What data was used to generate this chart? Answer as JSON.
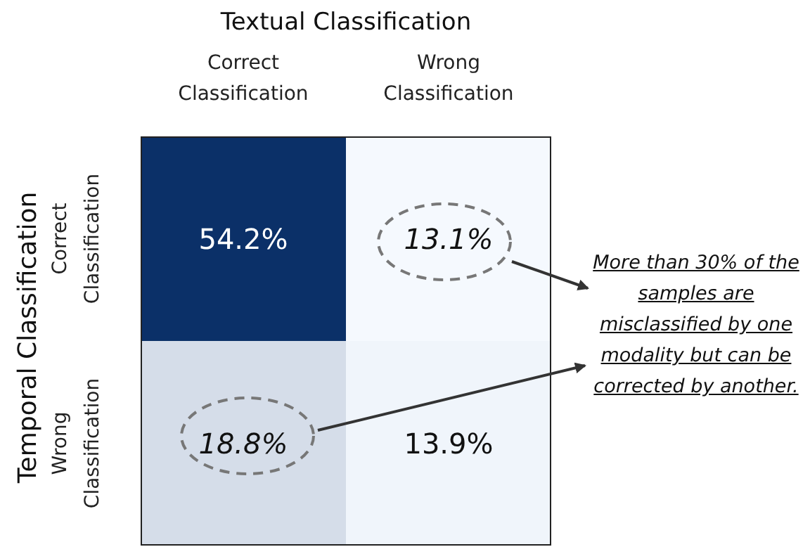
{
  "chart_data": {
    "type": "heatmap",
    "title": "Textual Classification",
    "ylabel": "Temporal Classification",
    "categories": [
      "Correct Classification",
      "Wrong Classification"
    ],
    "y_categories": [
      "Correct Classification",
      "Wrong Classification"
    ],
    "cells": [
      [
        54.2,
        13.1
      ],
      [
        18.8,
        13.9
      ]
    ],
    "cell_labels": [
      [
        "54.2%",
        "13.1%"
      ],
      [
        "18.8%",
        "13.9%"
      ]
    ],
    "annotations": [
      "More than 30% of the samples are misclassified by one modality but can be corrected by another."
    ]
  }
}
